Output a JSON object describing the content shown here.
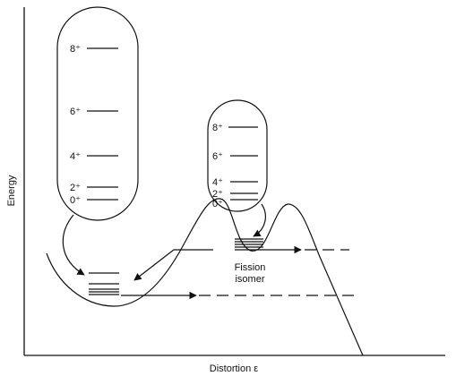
{
  "axes": {
    "y_label": "Energy",
    "x_label": "Distortion ε"
  },
  "ground_band": {
    "levels": [
      "8⁺",
      "6⁺",
      "4⁺",
      "2⁺",
      "0⁺"
    ]
  },
  "isomer_band": {
    "levels": [
      "8⁺",
      "6⁺",
      "4⁺",
      "2⁺",
      "0⁺"
    ]
  },
  "annotations": {
    "isomer_label_line1": "Fission",
    "isomer_label_line2": "isomer"
  }
}
